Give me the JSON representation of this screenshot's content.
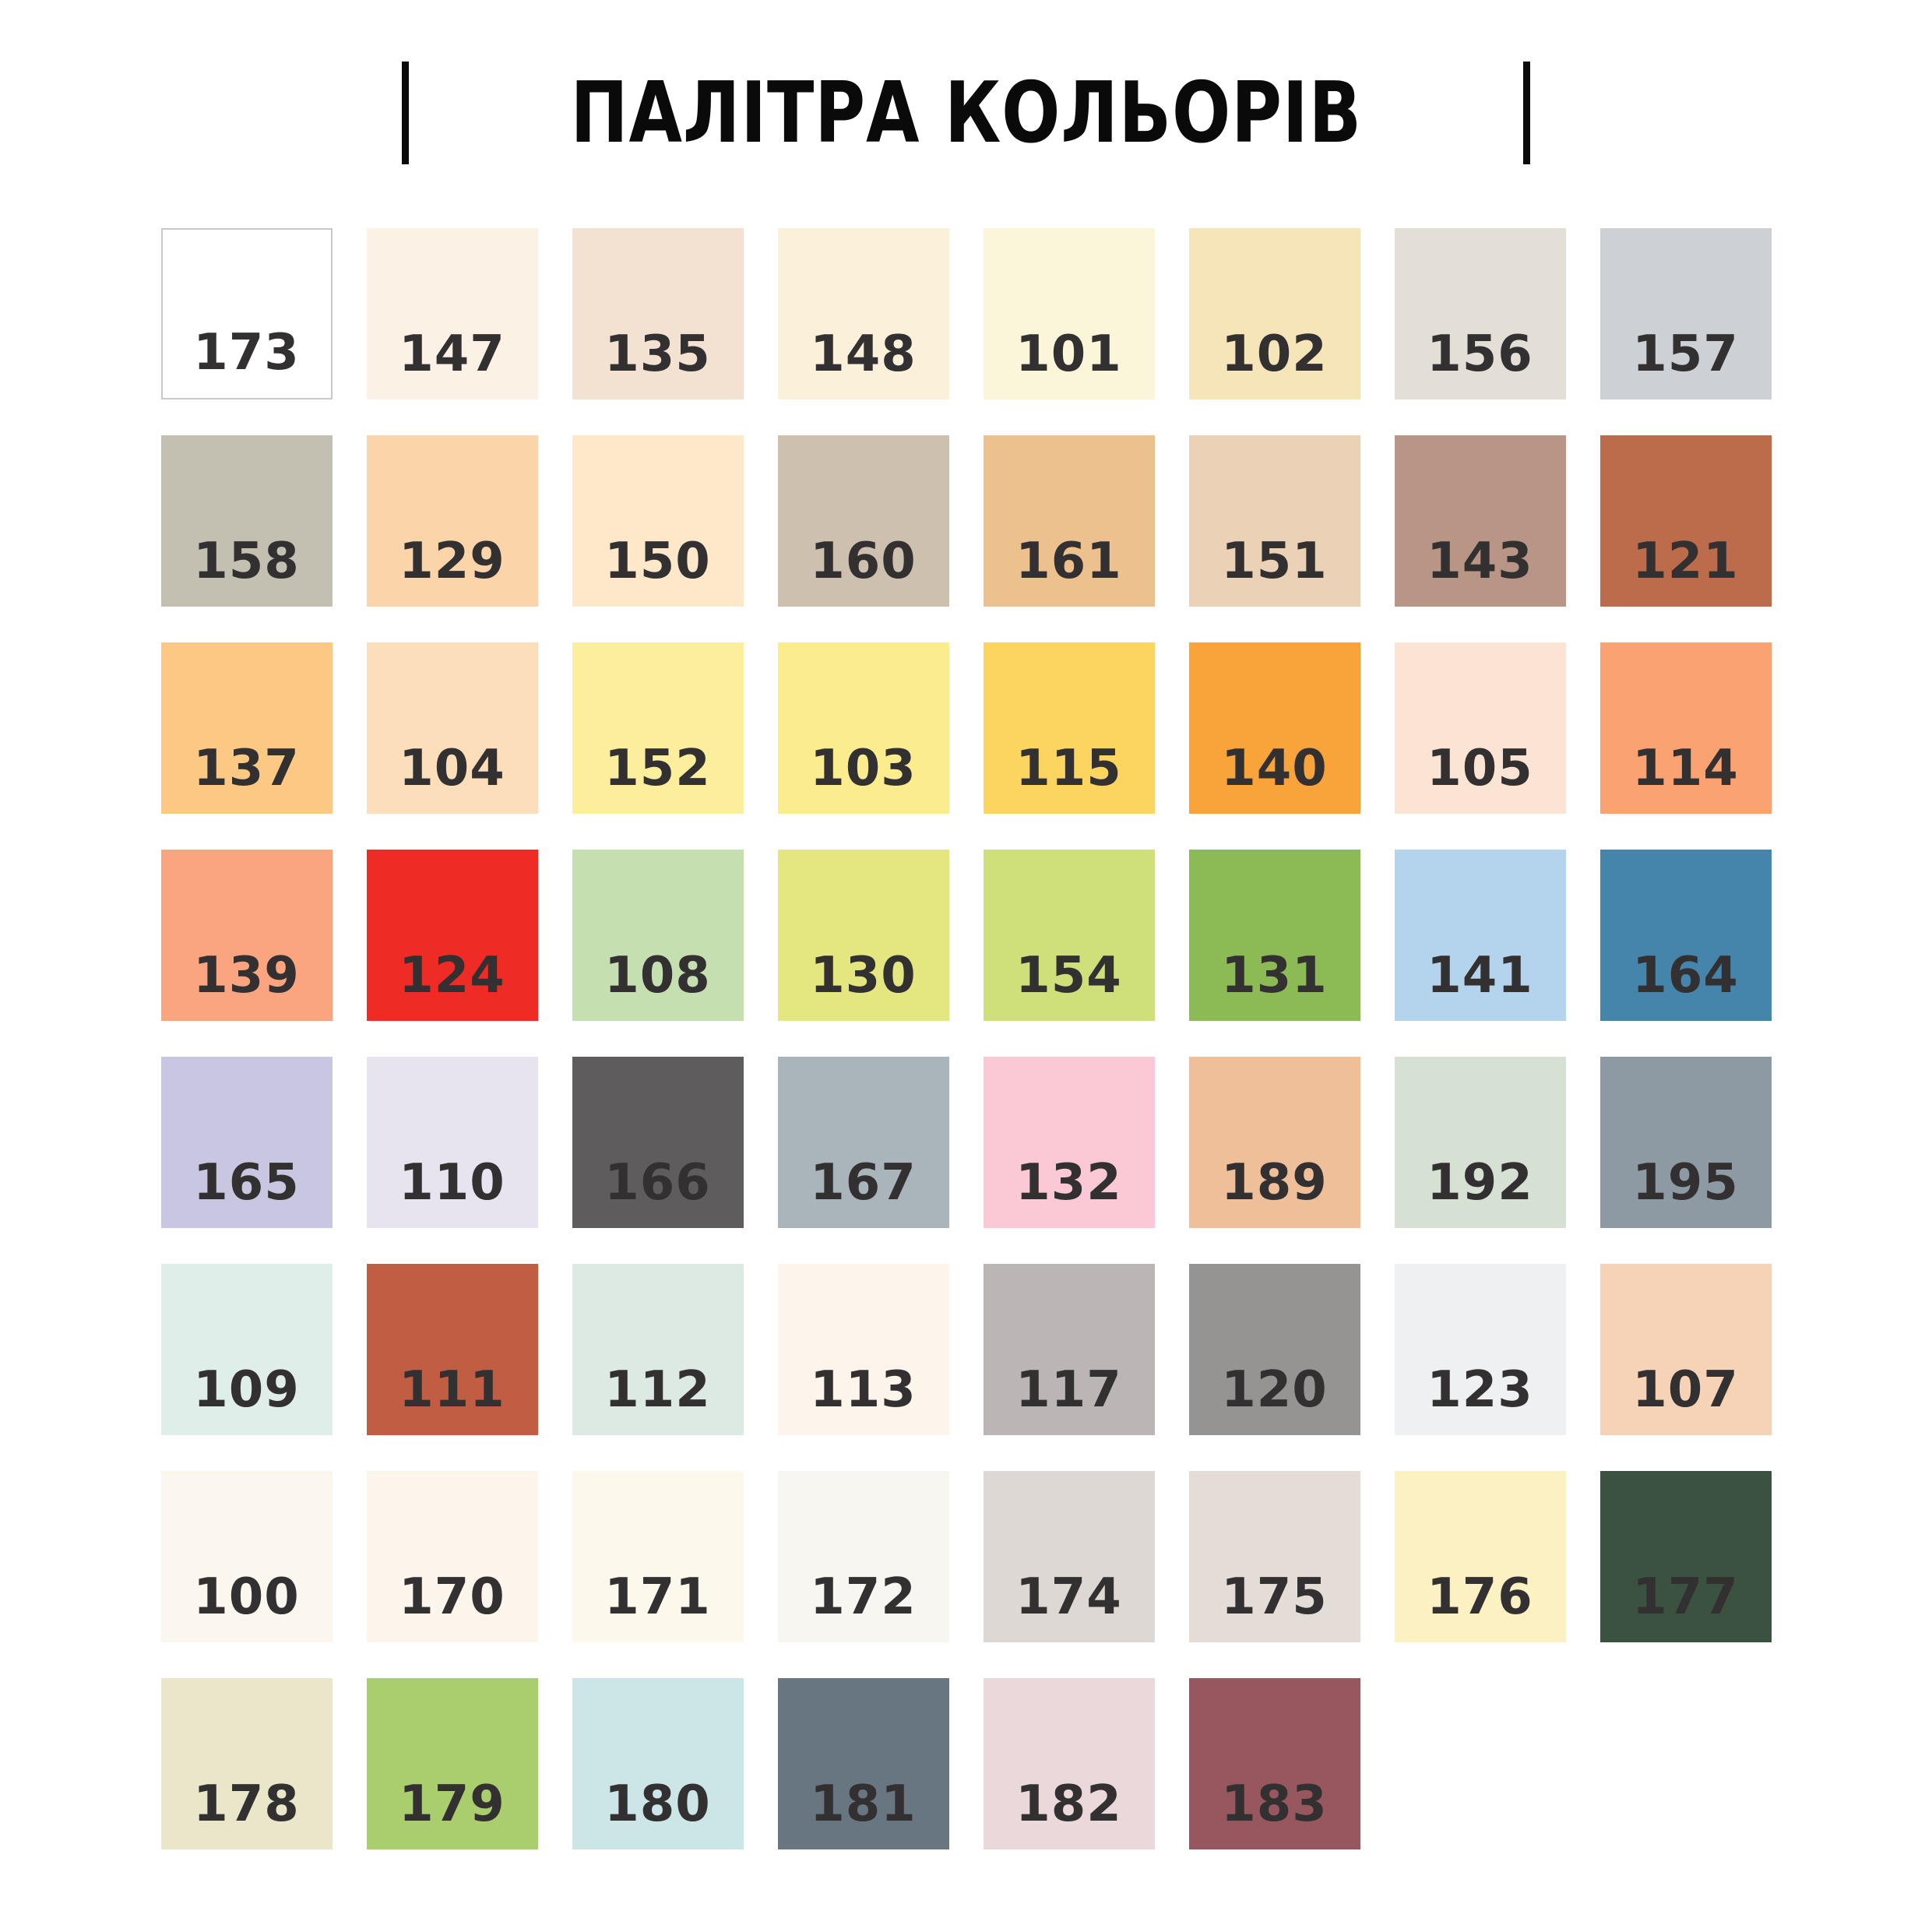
{
  "title": {
    "text": "ПАЛІТРА КОЛЬОРІВ"
  },
  "decor": {
    "bar_color": "#0a0a0a"
  },
  "label_color": "#333031",
  "swatches": [
    {
      "code": "173",
      "color": "#FFFFFF",
      "border": "#C8C8C8"
    },
    {
      "code": "147",
      "color": "#FCF1E5"
    },
    {
      "code": "135",
      "color": "#F3E1D1"
    },
    {
      "code": "148",
      "color": "#FBF1DA"
    },
    {
      "code": "101",
      "color": "#FBF6D9"
    },
    {
      "code": "102",
      "color": "#F5E5B8"
    },
    {
      "code": "156",
      "color": "#E3DFD7"
    },
    {
      "code": "157",
      "color": "#CDD1D5"
    },
    {
      "code": "158",
      "color": "#C3BFB1"
    },
    {
      "code": "129",
      "color": "#FBD4A9"
    },
    {
      "code": "150",
      "color": "#FEE8C9"
    },
    {
      "code": "160",
      "color": "#CDC0AE"
    },
    {
      "code": "161",
      "color": "#EDC18D"
    },
    {
      "code": "151",
      "color": "#EBD1B5"
    },
    {
      "code": "143",
      "color": "#B89585"
    },
    {
      "code": "121",
      "color": "#BC6C4B"
    },
    {
      "code": "137",
      "color": "#FBC983"
    },
    {
      "code": "104",
      "color": "#FCDEBA"
    },
    {
      "code": "152",
      "color": "#FBEE9C"
    },
    {
      "code": "103",
      "color": "#FBEC8D"
    },
    {
      "code": "115",
      "color": "#FBD55F"
    },
    {
      "code": "140",
      "color": "#F9A33B"
    },
    {
      "code": "105",
      "color": "#FCE4D5"
    },
    {
      "code": "114",
      "color": "#FBA273"
    },
    {
      "code": "139",
      "color": "#FBA580"
    },
    {
      "code": "124",
      "color": "#EE2B24"
    },
    {
      "code": "108",
      "color": "#C5DFB0"
    },
    {
      "code": "130",
      "color": "#E4E67F"
    },
    {
      "code": "154",
      "color": "#CFE07B"
    },
    {
      "code": "131",
      "color": "#8CBA55"
    },
    {
      "code": "141",
      "color": "#B4D4EE"
    },
    {
      "code": "164",
      "color": "#4585AC"
    },
    {
      "code": "165",
      "color": "#C8C6E1"
    },
    {
      "code": "110",
      "color": "#E7E3EF"
    },
    {
      "code": "166",
      "color": "#5F5C5D"
    },
    {
      "code": "167",
      "color": "#A9B4BB"
    },
    {
      "code": "132",
      "color": "#FBC8D5"
    },
    {
      "code": "189",
      "color": "#EFBF9A"
    },
    {
      "code": "192",
      "color": "#D6E0D3"
    },
    {
      "code": "195",
      "color": "#8E9AA3"
    },
    {
      "code": "109",
      "color": "#E0EEE9"
    },
    {
      "code": "111",
      "color": "#C15D42"
    },
    {
      "code": "112",
      "color": "#DCEAE3"
    },
    {
      "code": "113",
      "color": "#FDF5EB"
    },
    {
      "code": "117",
      "color": "#BBB5B5"
    },
    {
      "code": "120",
      "color": "#969492"
    },
    {
      "code": "123",
      "color": "#EFF0F2"
    },
    {
      "code": "107",
      "color": "#F6D3B6"
    },
    {
      "code": "100",
      "color": "#FBF6EE"
    },
    {
      "code": "170",
      "color": "#FBF5EC"
    },
    {
      "code": "171",
      "color": "#FCF8EB"
    },
    {
      "code": "172",
      "color": "#F7F6F1"
    },
    {
      "code": "174",
      "color": "#DDD8D4"
    },
    {
      "code": "175",
      "color": "#E4DDD7"
    },
    {
      "code": "176",
      "color": "#FBF1C3"
    },
    {
      "code": "177",
      "color": "#3A523F"
    },
    {
      "code": "178",
      "color": "#EAE6C9"
    },
    {
      "code": "179",
      "color": "#AACD6E"
    },
    {
      "code": "180",
      "color": "#CCE5E6"
    },
    {
      "code": "181",
      "color": "#687681"
    },
    {
      "code": "182",
      "color": "#EBD8DA"
    },
    {
      "code": "183",
      "color": "#96585E"
    }
  ]
}
